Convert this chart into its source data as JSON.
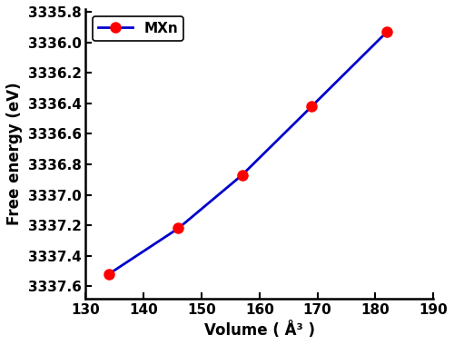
{
  "x": [
    134,
    146,
    157,
    169,
    182
  ],
  "y": [
    -3337.52,
    -3337.22,
    -3336.87,
    -3336.42,
    -3335.93
  ],
  "line_color": "#0000cc",
  "marker_color": "#ff0000",
  "marker_size": 8,
  "line_width": 2,
  "legend_label": "MXn",
  "xlabel": "Volume ( Å³ )",
  "ylabel": "Free energy (eV)",
  "xlim": [
    130,
    190
  ],
  "ylim": [
    -3337.68,
    -3335.78
  ],
  "xticks": [
    130,
    140,
    150,
    160,
    170,
    180,
    190
  ],
  "yticks": [
    -3337.6,
    -3337.4,
    -3337.2,
    -3337.0,
    -3336.8,
    -3336.6,
    -3336.4,
    -3336.2,
    -3336.0,
    -3335.8
  ],
  "ytick_labels": [
    "3337.6",
    "3337.4",
    "3337.2",
    "3337.0",
    "3336.8",
    "3336.6",
    "3336.4",
    "3336.2",
    "3336.0",
    "3335.8"
  ],
  "xtick_labels": [
    "130",
    "140",
    "150",
    "160",
    "170",
    "180",
    "190"
  ],
  "figsize": [
    5.0,
    3.8
  ],
  "dpi": 100
}
